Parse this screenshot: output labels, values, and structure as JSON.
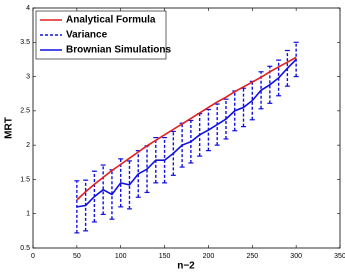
{
  "chart_data": {
    "type": "line",
    "xlabel": "n−2",
    "ylabel": "MRT",
    "x": [
      50,
      60,
      70,
      80,
      90,
      100,
      110,
      120,
      130,
      140,
      150,
      160,
      170,
      180,
      190,
      200,
      210,
      220,
      230,
      240,
      250,
      260,
      270,
      280,
      290,
      300
    ],
    "series": [
      {
        "name": "Analytical Formula",
        "color": "#e02020",
        "values": [
          1.2,
          1.32,
          1.43,
          1.53,
          1.63,
          1.72,
          1.81,
          1.9,
          1.99,
          2.07,
          2.15,
          2.23,
          2.31,
          2.39,
          2.47,
          2.55,
          2.63,
          2.7,
          2.78,
          2.85,
          2.92,
          2.99,
          3.07,
          3.14,
          3.21,
          3.28
        ]
      },
      {
        "name": "Variance",
        "color": "#1010e0",
        "values": [
          0.38,
          0.37,
          0.37,
          0.36,
          0.36,
          0.35,
          0.35,
          0.34,
          0.34,
          0.33,
          0.33,
          0.32,
          0.32,
          0.31,
          0.31,
          0.3,
          0.3,
          0.29,
          0.29,
          0.28,
          0.28,
          0.27,
          0.27,
          0.26,
          0.26,
          0.25
        ]
      },
      {
        "name": "Brownian Simulations",
        "color": "#1010e0",
        "values": [
          1.1,
          1.12,
          1.25,
          1.35,
          1.28,
          1.45,
          1.42,
          1.58,
          1.65,
          1.78,
          1.78,
          1.88,
          2.0,
          2.05,
          2.15,
          2.22,
          2.3,
          2.38,
          2.5,
          2.55,
          2.65,
          2.8,
          2.88,
          2.98,
          3.12,
          3.25
        ]
      }
    ],
    "xlim": [
      0,
      350
    ],
    "xticks": [
      0,
      50,
      100,
      150,
      200,
      250,
      300,
      350
    ],
    "ylim": [
      0.5,
      4
    ],
    "yticks": [
      0.5,
      1,
      1.5,
      2,
      2.5,
      3,
      3.5,
      4
    ],
    "legend": "upper left"
  }
}
